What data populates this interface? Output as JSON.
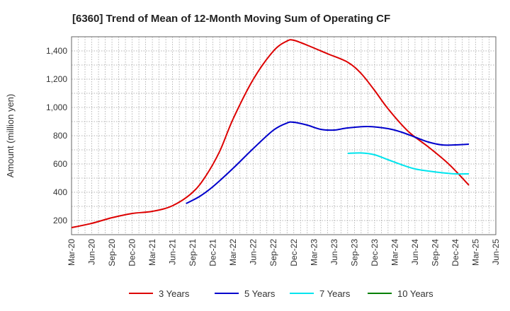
{
  "chart_data": {
    "type": "line",
    "title": "[6360]  Trend of Mean of 12-Month Moving Sum of Operating CF",
    "xlabel": "",
    "ylabel": "Amount (million yen)",
    "ylim": [
      100,
      1500
    ],
    "yticks": [
      200,
      400,
      600,
      800,
      1000,
      1200,
      1400
    ],
    "ytick_labels": [
      "200",
      "400",
      "600",
      "800",
      "1,000",
      "1,200",
      "1,400"
    ],
    "x_tick_labels": [
      "Mar-20",
      "Jun-20",
      "Sep-20",
      "Dec-20",
      "Mar-21",
      "Jun-21",
      "Sep-21",
      "Dec-21",
      "Mar-22",
      "Jun-22",
      "Sep-22",
      "Dec-22",
      "Mar-23",
      "Jun-23",
      "Sep-23",
      "Dec-23",
      "Mar-24",
      "Jun-24",
      "Sep-24",
      "Dec-24",
      "Mar-25",
      "Jun-25"
    ],
    "x_range_months": [
      0,
      63
    ],
    "grid": true,
    "legend_position": "bottom",
    "series": [
      {
        "name": "3 Years",
        "color": "#dd0000",
        "points": [
          [
            0,
            150
          ],
          [
            3,
            180
          ],
          [
            6,
            220
          ],
          [
            9,
            250
          ],
          [
            12,
            265
          ],
          [
            15,
            305
          ],
          [
            18,
            400
          ],
          [
            20,
            520
          ],
          [
            22,
            690
          ],
          [
            24,
            920
          ],
          [
            27,
            1200
          ],
          [
            30,
            1400
          ],
          [
            32,
            1470
          ],
          [
            33,
            1475
          ],
          [
            35,
            1440
          ],
          [
            38,
            1380
          ],
          [
            41,
            1320
          ],
          [
            43,
            1240
          ],
          [
            45,
            1120
          ],
          [
            47,
            990
          ],
          [
            50,
            830
          ],
          [
            53,
            720
          ],
          [
            56,
            600
          ],
          [
            59,
            450
          ]
        ]
      },
      {
        "name": "5 Years",
        "color": "#0000cc",
        "points": [
          [
            17,
            320
          ],
          [
            19,
            370
          ],
          [
            21,
            440
          ],
          [
            24,
            570
          ],
          [
            27,
            710
          ],
          [
            30,
            840
          ],
          [
            32,
            890
          ],
          [
            33,
            895
          ],
          [
            35,
            875
          ],
          [
            37,
            845
          ],
          [
            39,
            840
          ],
          [
            41,
            855
          ],
          [
            44,
            865
          ],
          [
            47,
            850
          ],
          [
            49,
            825
          ],
          [
            51,
            790
          ],
          [
            53,
            755
          ],
          [
            55,
            735
          ],
          [
            57,
            735
          ],
          [
            59,
            740
          ]
        ]
      },
      {
        "name": "7 Years",
        "color": "#00e5ee",
        "points": [
          [
            41,
            675
          ],
          [
            43,
            678
          ],
          [
            45,
            665
          ],
          [
            47,
            630
          ],
          [
            49,
            595
          ],
          [
            51,
            565
          ],
          [
            53,
            550
          ],
          [
            55,
            538
          ],
          [
            57,
            530
          ],
          [
            59,
            530
          ]
        ]
      },
      {
        "name": "10 Years",
        "color": "#008000",
        "points": []
      }
    ]
  }
}
